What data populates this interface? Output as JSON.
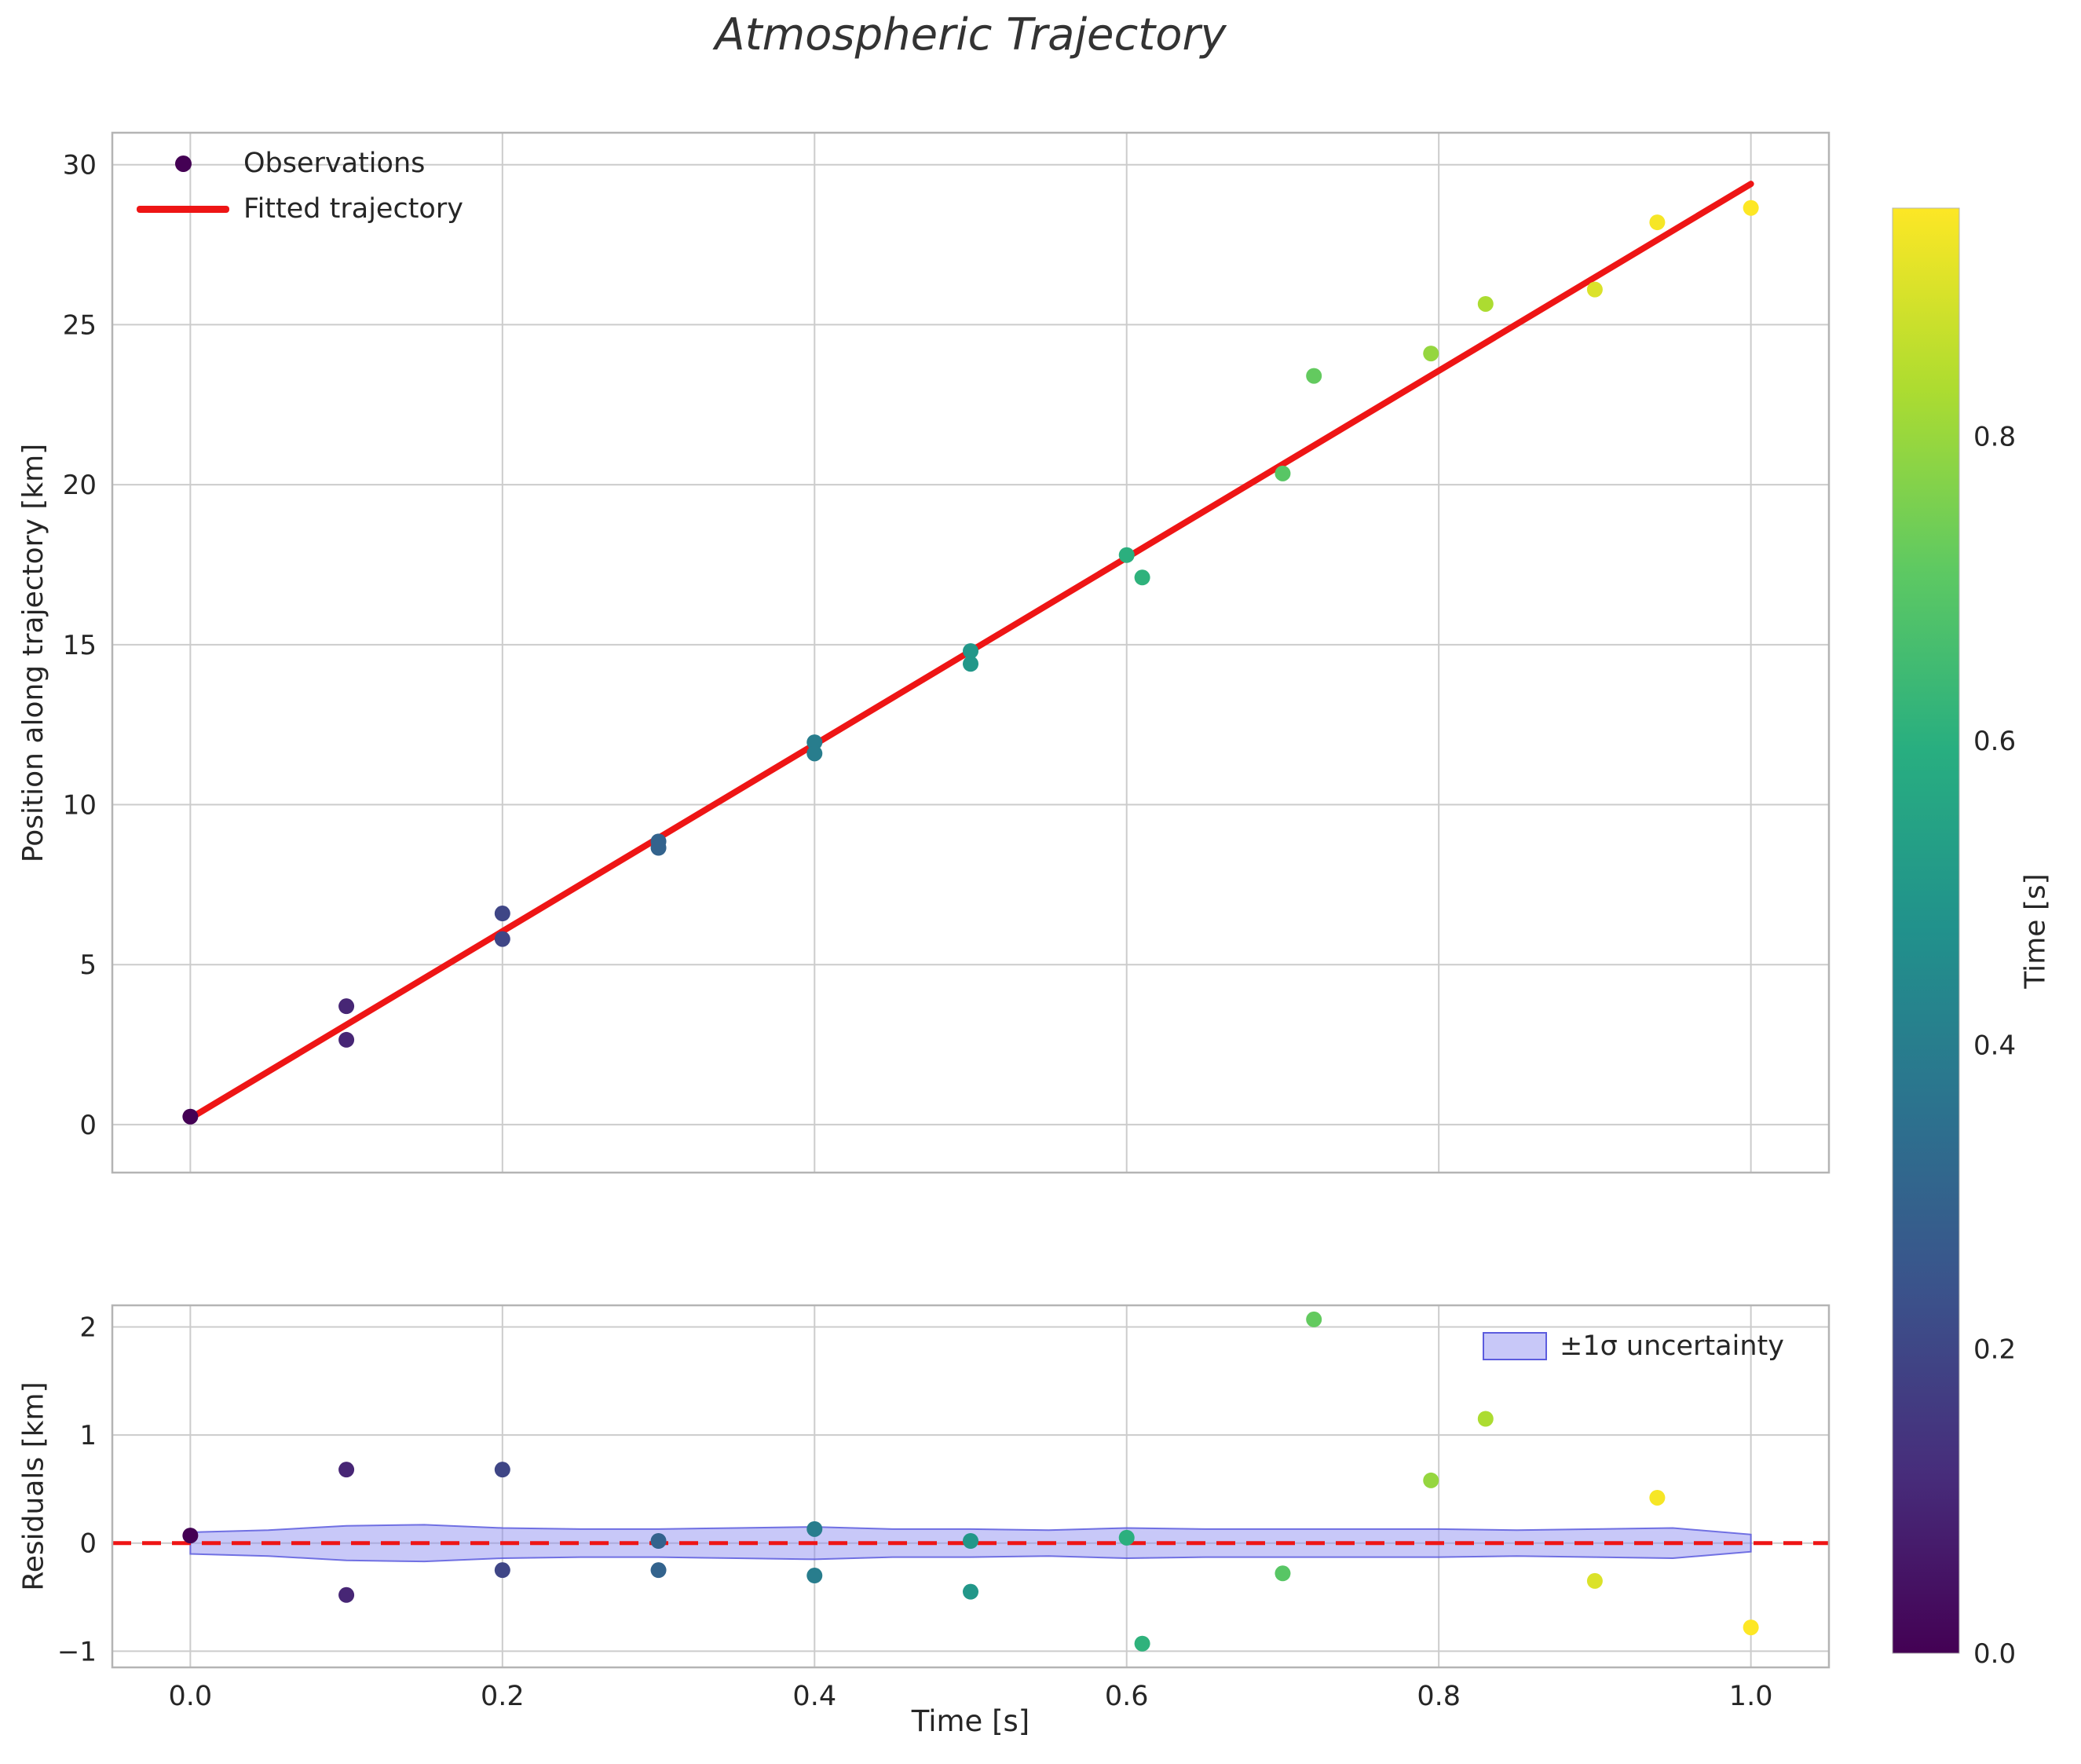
{
  "title": "Atmospheric Trajectory",
  "colors": {
    "fit_line": "#ee1515",
    "obs_marker": "#440154",
    "band_fill": "#8686f0",
    "band_edge": "#5c5cde",
    "grid": "#cccccc",
    "spine": "#b4b4b4",
    "text": "#262626",
    "title": "#333333",
    "viridis": [
      "#440154",
      "#472d7b",
      "#3b528b",
      "#2c728e",
      "#21918c",
      "#28ae80",
      "#5ec962",
      "#addc30",
      "#fde725"
    ]
  },
  "colorbar": {
    "label": "Time [s]",
    "ticks": [
      0.0,
      0.2,
      0.4,
      0.6,
      0.8
    ],
    "vmin": 0.0,
    "vmax": 0.95,
    "colormap": "viridis"
  },
  "legend_main": {
    "observations": "Observations",
    "fit": "Fitted trajectory"
  },
  "legend_residuals": {
    "band": "±1σ uncertainty"
  },
  "chart_data": [
    {
      "type": "scatter",
      "title": "Atmospheric Trajectory",
      "xlabel": "Time [s]",
      "ylabel": "Position along trajectory [km]",
      "xlim": [
        -0.05,
        1.05
      ],
      "ylim": [
        -1.5,
        31.0
      ],
      "x_ticks": [
        0.0,
        0.2,
        0.4,
        0.6,
        0.8,
        1.0
      ],
      "y_ticks": [
        0,
        5,
        10,
        15,
        20,
        25,
        30
      ],
      "grid": true,
      "legend_position": "upper left",
      "legend": [
        "Observations",
        "Fitted trajectory"
      ],
      "series": [
        {
          "name": "Observations",
          "type": "scatter",
          "colormap": "viridis",
          "color_by": "x",
          "x": [
            0.0,
            0.1,
            0.1,
            0.2,
            0.2,
            0.3,
            0.3,
            0.4,
            0.4,
            0.5,
            0.5,
            0.6,
            0.61,
            0.7,
            0.72,
            0.795,
            0.83,
            0.9,
            0.94,
            1.0
          ],
          "y": [
            0.25,
            3.7,
            2.65,
            6.6,
            5.8,
            8.85,
            8.65,
            11.95,
            11.6,
            14.8,
            14.4,
            17.8,
            17.1,
            20.35,
            23.4,
            24.1,
            25.65,
            26.1,
            28.2,
            28.65
          ]
        },
        {
          "name": "Fitted trajectory",
          "type": "line",
          "color": "#ee1515",
          "x": [
            0.0,
            1.0
          ],
          "y": [
            0.2,
            29.4
          ]
        }
      ]
    },
    {
      "type": "scatter",
      "title": "",
      "xlabel": "Time [s]",
      "ylabel": "Residuals [km]",
      "xlim": [
        -0.05,
        1.05
      ],
      "ylim": [
        -1.15,
        2.2
      ],
      "x_ticks": [
        0.0,
        0.2,
        0.4,
        0.6,
        0.8,
        1.0
      ],
      "x_tick_labels": [
        "0.0",
        "0.2",
        "0.4",
        "0.6",
        "0.8",
        "1.0"
      ],
      "y_ticks": [
        -1,
        0,
        1,
        2
      ],
      "grid": true,
      "legend_position": "upper right",
      "legend": [
        "±1σ uncertainty"
      ],
      "series": [
        {
          "name": "Residuals",
          "type": "scatter",
          "colormap": "viridis",
          "color_by": "x",
          "x": [
            0.0,
            0.1,
            0.1,
            0.2,
            0.2,
            0.3,
            0.3,
            0.4,
            0.4,
            0.5,
            0.5,
            0.6,
            0.61,
            0.7,
            0.72,
            0.795,
            0.83,
            0.9,
            0.94,
            1.0
          ],
          "y": [
            0.07,
            0.68,
            -0.48,
            0.68,
            -0.25,
            0.02,
            -0.25,
            0.13,
            -0.3,
            0.02,
            -0.45,
            0.05,
            -0.93,
            -0.28,
            2.07,
            0.58,
            1.15,
            -0.35,
            0.42,
            -0.78
          ]
        },
        {
          "name": "±1σ uncertainty",
          "type": "band",
          "x": [
            0.0,
            0.05,
            0.1,
            0.15,
            0.2,
            0.25,
            0.3,
            0.35,
            0.4,
            0.45,
            0.5,
            0.55,
            0.6,
            0.65,
            0.7,
            0.75,
            0.8,
            0.85,
            0.9,
            0.95,
            1.0
          ],
          "hi": [
            0.1,
            0.12,
            0.16,
            0.17,
            0.14,
            0.13,
            0.13,
            0.14,
            0.15,
            0.13,
            0.13,
            0.12,
            0.14,
            0.13,
            0.13,
            0.13,
            0.13,
            0.12,
            0.13,
            0.14,
            0.08
          ],
          "lo": [
            -0.1,
            -0.12,
            -0.16,
            -0.17,
            -0.14,
            -0.13,
            -0.13,
            -0.14,
            -0.15,
            -0.13,
            -0.13,
            -0.12,
            -0.14,
            -0.13,
            -0.13,
            -0.13,
            -0.13,
            -0.12,
            -0.13,
            -0.14,
            -0.08
          ]
        },
        {
          "name": "Zero residual line",
          "type": "hline",
          "y": 0.0,
          "style": "dashed",
          "color": "#ee1515"
        }
      ]
    }
  ]
}
